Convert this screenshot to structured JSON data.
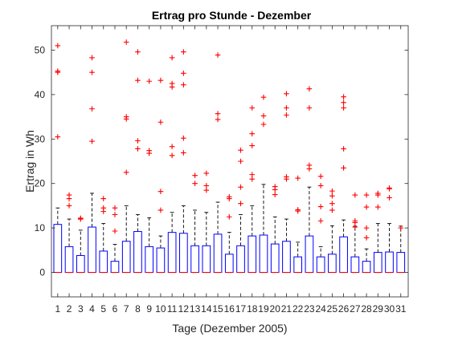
{
  "chart_data": {
    "type": "box",
    "title": "Ertrag pro Stunde - Dezember",
    "xlabel": "Tage (Dezember 2005)",
    "ylabel": "Ertrag in Wh",
    "ylim": [
      -5.5,
      55.5
    ],
    "yticks": [
      0,
      10,
      20,
      30,
      40,
      50
    ],
    "grid": false,
    "colors": {
      "box": "#0000ff",
      "whisker": "#000000",
      "median": "#ff0000",
      "outlier": "#ff0000",
      "axes": "#262626"
    },
    "categories": [
      "1",
      "2",
      "3",
      "4",
      "5",
      "6",
      "7",
      "8",
      "9",
      "10",
      "11",
      "12",
      "13",
      "14",
      "15",
      "16",
      "17",
      "18",
      "19",
      "20",
      "21",
      "22",
      "23",
      "24",
      "25",
      "26",
      "27",
      "28",
      "29",
      "30",
      "31"
    ],
    "boxes": [
      {
        "q1": 0,
        "median": 0,
        "q3": 10.8,
        "whisker_high": 14.5,
        "outliers": [
          30.5,
          45,
          45.3,
          51
        ]
      },
      {
        "q1": 0,
        "median": 0,
        "q3": 5.8,
        "whisker_high": 12,
        "outliers": [
          15,
          16.6,
          17.4
        ]
      },
      {
        "q1": 0,
        "median": 0,
        "q3": 3.8,
        "whisker_high": 9.5,
        "outliers": [
          12,
          12.2
        ]
      },
      {
        "q1": 0,
        "median": 0,
        "q3": 10.2,
        "whisker_high": 17.8,
        "outliers": [
          29.5,
          36.8,
          45,
          48.3
        ]
      },
      {
        "q1": 0,
        "median": 0,
        "q3": 4.8,
        "whisker_high": 11,
        "outliers": [
          13.7,
          14.5,
          16.6
        ]
      },
      {
        "q1": 0,
        "median": 0,
        "q3": 2.5,
        "whisker_high": 6.3,
        "outliers": [
          9.3,
          13,
          14.5
        ]
      },
      {
        "q1": 0,
        "median": 0,
        "q3": 7,
        "whisker_high": 15,
        "outliers": [
          22.5,
          34.5,
          35,
          51.8
        ]
      },
      {
        "q1": 0,
        "median": 0,
        "q3": 9.2,
        "whisker_high": 13,
        "outliers": [
          27.8,
          29.6,
          43.2,
          49.6
        ]
      },
      {
        "q1": 0,
        "median": 0,
        "q3": 5.8,
        "whisker_high": 12.3,
        "outliers": [
          26.8,
          27.4,
          43
        ]
      },
      {
        "q1": 0,
        "median": 0,
        "q3": 5.5,
        "whisker_high": 8.2,
        "outliers": [
          14,
          18.2,
          33.8,
          43.2
        ]
      },
      {
        "q1": 0,
        "median": 0,
        "q3": 9,
        "whisker_high": 13.5,
        "outliers": [
          26.3,
          28.3,
          41.7,
          42.5,
          48.3
        ]
      },
      {
        "q1": 0,
        "median": 0,
        "q3": 8.8,
        "whisker_high": 15,
        "outliers": [
          26.9,
          30.2,
          42.2,
          44.8,
          49.6
        ]
      },
      {
        "q1": 0,
        "median": 0,
        "q3": 6,
        "whisker_high": 14,
        "outliers": [
          20,
          21.8
        ]
      },
      {
        "q1": 0,
        "median": 0,
        "q3": 6,
        "whisker_high": 13.5,
        "outliers": [
          18.5,
          19.5,
          22.3
        ]
      },
      {
        "q1": 0,
        "median": 0,
        "q3": 8.6,
        "whisker_high": 15.8,
        "outliers": [
          34.4,
          35.7,
          48.9
        ]
      },
      {
        "q1": 0,
        "median": 0,
        "q3": 4.1,
        "whisker_high": 9,
        "outliers": [
          12.5,
          16.6,
          17
        ]
      },
      {
        "q1": 0,
        "median": 0,
        "q3": 6,
        "whisker_high": 13,
        "outliers": [
          15.5,
          19.2,
          25,
          27.5
        ]
      },
      {
        "q1": 0,
        "median": 0,
        "q3": 8.2,
        "whisker_high": 15,
        "outliers": [
          21,
          22,
          28.5,
          31.2,
          37
        ]
      },
      {
        "q1": 0,
        "median": 0,
        "q3": 8.4,
        "whisker_high": 19.8,
        "outliers": [
          33.3,
          35.2,
          39.4
        ]
      },
      {
        "q1": 0,
        "median": 0,
        "q3": 6.4,
        "whisker_high": 12.5,
        "outliers": [
          17.5,
          18.6,
          19.3
        ]
      },
      {
        "q1": 0,
        "median": 0,
        "q3": 7,
        "whisker_high": 12,
        "outliers": [
          21,
          21.5,
          35.4,
          37,
          40.2
        ]
      },
      {
        "q1": 0,
        "median": 0,
        "q3": 3.5,
        "whisker_high": 6.8,
        "outliers": [
          13.8,
          14.1,
          21.2
        ]
      },
      {
        "q1": 0,
        "median": 0,
        "q3": 8.2,
        "whisker_high": 19.2,
        "outliers": [
          23.3,
          24.1,
          37,
          41.3
        ]
      },
      {
        "q1": 0,
        "median": 0,
        "q3": 3.5,
        "whisker_high": 5.8,
        "outliers": [
          11.6,
          14.8,
          19.5,
          21.6
        ]
      },
      {
        "q1": 0,
        "median": 0,
        "q3": 4.1,
        "whisker_high": 10.5,
        "outliers": [
          14,
          15.5,
          17.2,
          18.3
        ]
      },
      {
        "q1": 0,
        "median": 0,
        "q3": 8,
        "whisker_high": 11.8,
        "outliers": [
          23.5,
          27.8,
          37,
          38.2,
          39.5
        ]
      },
      {
        "q1": 0,
        "median": 0,
        "q3": 3.5,
        "whisker_high": 10.4,
        "outliers": [
          10.2,
          11.2,
          11.6,
          17.4
        ]
      },
      {
        "q1": 0,
        "median": 0,
        "q3": 2.5,
        "whisker_high": 5.3,
        "outliers": [
          7.8,
          10,
          14.7,
          17.4
        ]
      },
      {
        "q1": 0,
        "median": 0,
        "q3": 4.5,
        "whisker_high": 11,
        "outliers": [
          14.7,
          17.4,
          17.8
        ]
      },
      {
        "q1": 0,
        "median": 0,
        "q3": 4.6,
        "whisker_high": 11,
        "outliers": [
          16.8,
          18.8,
          19
        ]
      },
      {
        "q1": 0,
        "median": 0,
        "q3": 4.5,
        "whisker_high": 10.4,
        "outliers": [
          10
        ]
      }
    ]
  }
}
